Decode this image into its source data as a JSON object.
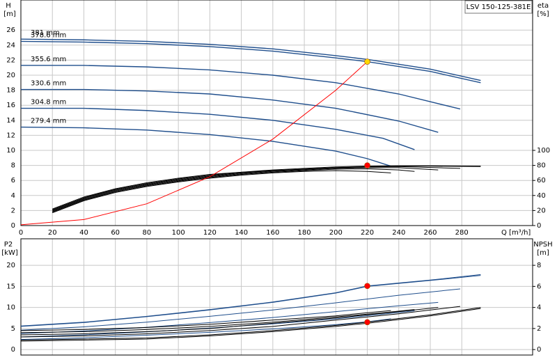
{
  "chart_data": [
    {
      "type": "line",
      "title": "LSV 150-125-381E",
      "x_label": "Q [m³/h]",
      "y_label": "H",
      "y_unit": "[m]",
      "y2_label": "eta",
      "y2_unit": "[%]",
      "xlim": [
        0,
        325
      ],
      "xticks": [
        0,
        20,
        40,
        60,
        80,
        100,
        120,
        140,
        160,
        180,
        200,
        220,
        240,
        260,
        280
      ],
      "ylim": [
        0,
        30
      ],
      "yticks": [
        0,
        2,
        4,
        6,
        8,
        10,
        12,
        14,
        16,
        18,
        20,
        22,
        24,
        26
      ],
      "y2lim": [
        0,
        300
      ],
      "y2ticks": [
        0,
        20,
        40,
        60,
        80,
        100
      ],
      "grid": true,
      "series": [
        {
          "name": "381 mm",
          "color": "#1f4e8c",
          "x": [
            0,
            40,
            80,
            120,
            160,
            200,
            220,
            260,
            292
          ],
          "values": [
            24.8,
            24.7,
            24.5,
            24.1,
            23.5,
            22.6,
            22.1,
            20.8,
            19.3
          ]
        },
        {
          "name": "378.6 mm",
          "color": "#1f4e8c",
          "x": [
            0,
            40,
            80,
            120,
            160,
            200,
            220,
            260,
            292
          ],
          "values": [
            24.5,
            24.4,
            24.2,
            23.8,
            23.2,
            22.3,
            21.8,
            20.5,
            19.0
          ]
        },
        {
          "name": "355.6 mm",
          "color": "#1f4e8c",
          "x": [
            0,
            40,
            80,
            120,
            160,
            200,
            240,
            279
          ],
          "values": [
            21.3,
            21.3,
            21.1,
            20.7,
            20.0,
            19.0,
            17.5,
            15.5
          ]
        },
        {
          "name": "330.6 mm",
          "color": "#1f4e8c",
          "x": [
            0,
            40,
            80,
            120,
            160,
            200,
            240,
            265
          ],
          "values": [
            18.1,
            18.1,
            17.9,
            17.5,
            16.7,
            15.6,
            13.9,
            12.4
          ]
        },
        {
          "name": "304.8 mm",
          "color": "#1f4e8c",
          "x": [
            0,
            40,
            80,
            120,
            160,
            200,
            230,
            250
          ],
          "values": [
            15.6,
            15.6,
            15.3,
            14.8,
            14.0,
            12.8,
            11.6,
            10.1
          ]
        },
        {
          "name": "279.4 mm",
          "color": "#1f4e8c",
          "x": [
            0,
            40,
            80,
            120,
            160,
            200,
            220,
            235
          ],
          "values": [
            13.1,
            13.0,
            12.7,
            12.1,
            11.2,
            9.9,
            8.9,
            7.9
          ]
        },
        {
          "axis": "y2",
          "color": "#000000",
          "x": [
            20,
            40,
            60,
            80,
            100,
            120,
            140,
            160,
            180,
            200,
            220,
            240,
            260,
            292
          ],
          "values": [
            22,
            38,
            49,
            57,
            63,
            68,
            71,
            74,
            76,
            78,
            79,
            79.5,
            79.5,
            79
          ]
        },
        {
          "axis": "y2",
          "color": "#000000",
          "x": [
            20,
            40,
            60,
            80,
            100,
            120,
            140,
            160,
            180,
            200,
            220,
            240,
            260,
            292
          ],
          "values": [
            21,
            37,
            48,
            56,
            62,
            67,
            71,
            73,
            75,
            77,
            78.5,
            79,
            79,
            78.5
          ]
        },
        {
          "axis": "y2",
          "color": "#000000",
          "x": [
            20,
            40,
            60,
            80,
            100,
            120,
            140,
            160,
            180,
            200,
            220,
            240,
            279
          ],
          "values": [
            20,
            36,
            47,
            55,
            61,
            66,
            70,
            73,
            75,
            77,
            78,
            78.5,
            76
          ]
        },
        {
          "axis": "y2",
          "color": "#000000",
          "x": [
            20,
            40,
            60,
            80,
            100,
            120,
            140,
            160,
            180,
            200,
            220,
            240,
            265
          ],
          "values": [
            19,
            35,
            46,
            54,
            60,
            65,
            69,
            72,
            74,
            76,
            77,
            77,
            74
          ]
        },
        {
          "axis": "y2",
          "color": "#000000",
          "x": [
            20,
            40,
            60,
            80,
            100,
            120,
            140,
            160,
            180,
            200,
            220,
            240,
            250
          ],
          "values": [
            18,
            34,
            45,
            53,
            59,
            64,
            68,
            71,
            73,
            75,
            75.5,
            74,
            72
          ]
        },
        {
          "axis": "y2",
          "color": "#000000",
          "x": [
            20,
            40,
            60,
            80,
            100,
            120,
            140,
            160,
            180,
            200,
            220,
            235
          ],
          "values": [
            17,
            33,
            44,
            52,
            58,
            63,
            67,
            70,
            72,
            73,
            72,
            70
          ]
        },
        {
          "color": "#ff0000",
          "x": [
            0,
            40,
            80,
            120,
            160,
            200,
            220
          ],
          "values": [
            0.1,
            0.8,
            2.9,
            6.5,
            11.5,
            18.0,
            21.8
          ]
        }
      ],
      "points": [
        {
          "x": 220,
          "y": 21.8,
          "color": "#ffd700"
        },
        {
          "x": 220,
          "y": 80,
          "axis": "y2",
          "color": "#ff0000"
        }
      ]
    },
    {
      "type": "line",
      "y_label": "P2",
      "y_unit": "[kW]",
      "y2_label": "NPSH",
      "y2_unit": "[m]",
      "xlim": [
        0,
        325
      ],
      "ylim": [
        -1.3,
        26.3
      ],
      "yticks": [
        0,
        5,
        10,
        15,
        20
      ],
      "y2lim": [
        -0.52,
        10.52
      ],
      "y2ticks": [
        0,
        2,
        4,
        6,
        8
      ],
      "grid": true,
      "series": [
        {
          "color": "#1f4e8c",
          "x": [
            0,
            40,
            80,
            120,
            160,
            200,
            220,
            260,
            292
          ],
          "values": [
            5.6,
            6.5,
            7.9,
            9.5,
            11.3,
            13.5,
            15.1,
            16.5,
            17.8
          ]
        },
        {
          "color": "#1f4e8c",
          "x": [
            0,
            40,
            80,
            120,
            160,
            200,
            220,
            260,
            292
          ],
          "values": [
            5.5,
            6.4,
            7.8,
            9.4,
            11.2,
            13.4,
            15.0,
            16.4,
            17.6
          ]
        },
        {
          "color": "#1f4e8c",
          "x": [
            0,
            40,
            80,
            120,
            160,
            200,
            240,
            279
          ],
          "values": [
            4.6,
            5.4,
            6.5,
            7.9,
            9.4,
            11.1,
            12.9,
            14.4
          ]
        },
        {
          "color": "#1f4e8c",
          "x": [
            0,
            40,
            80,
            120,
            160,
            200,
            240,
            265
          ],
          "values": [
            3.8,
            4.4,
            5.3,
            6.4,
            7.6,
            9.0,
            10.4,
            11.2
          ]
        },
        {
          "color": "#1f4e8c",
          "x": [
            0,
            40,
            80,
            120,
            160,
            200,
            230,
            250
          ],
          "values": [
            3.0,
            3.5,
            4.2,
            5.1,
            6.1,
            7.3,
            8.4,
            9.2
          ]
        },
        {
          "color": "#1f4e8c",
          "x": [
            0,
            40,
            80,
            120,
            160,
            200,
            220,
            235
          ],
          "values": [
            2.4,
            2.8,
            3.4,
            4.1,
            4.9,
            5.9,
            6.6,
            7.3
          ]
        },
        {
          "axis": "y2",
          "color": "#000000",
          "x": [
            0,
            40,
            80,
            120,
            160,
            200,
            220,
            260,
            292
          ],
          "values": [
            0.9,
            1.0,
            1.1,
            1.4,
            1.8,
            2.3,
            2.6,
            3.3,
            4.0
          ]
        },
        {
          "axis": "y2",
          "color": "#000000",
          "x": [
            0,
            40,
            80,
            120,
            160,
            200,
            220,
            260,
            292
          ],
          "values": [
            0.8,
            0.9,
            1.0,
            1.3,
            1.7,
            2.2,
            2.5,
            3.2,
            3.9
          ]
        },
        {
          "axis": "y2",
          "color": "#000000",
          "x": [
            0,
            40,
            80,
            120,
            160,
            200,
            240,
            279
          ],
          "values": [
            1.2,
            1.3,
            1.5,
            1.8,
            2.2,
            2.8,
            3.4,
            4.1
          ]
        },
        {
          "axis": "y2",
          "color": "#000000",
          "x": [
            0,
            40,
            80,
            120,
            160,
            200,
            240,
            265
          ],
          "values": [
            1.4,
            1.5,
            1.7,
            2.0,
            2.5,
            3.0,
            3.6,
            4.0
          ]
        },
        {
          "axis": "y2",
          "color": "#000000",
          "x": [
            0,
            40,
            80,
            120,
            160,
            200,
            230,
            250
          ],
          "values": [
            1.6,
            1.7,
            1.9,
            2.2,
            2.6,
            3.1,
            3.5,
            3.8
          ]
        },
        {
          "axis": "y2",
          "color": "#000000",
          "x": [
            0,
            40,
            80,
            120,
            160,
            200,
            220,
            235
          ],
          "values": [
            1.8,
            1.9,
            2.1,
            2.4,
            2.8,
            3.2,
            3.5,
            3.7
          ]
        }
      ],
      "points": [
        {
          "x": 220,
          "y": 15.1,
          "color": "#ff0000"
        },
        {
          "x": 220,
          "y": 2.6,
          "axis": "y2",
          "color": "#ff0000"
        }
      ]
    }
  ]
}
